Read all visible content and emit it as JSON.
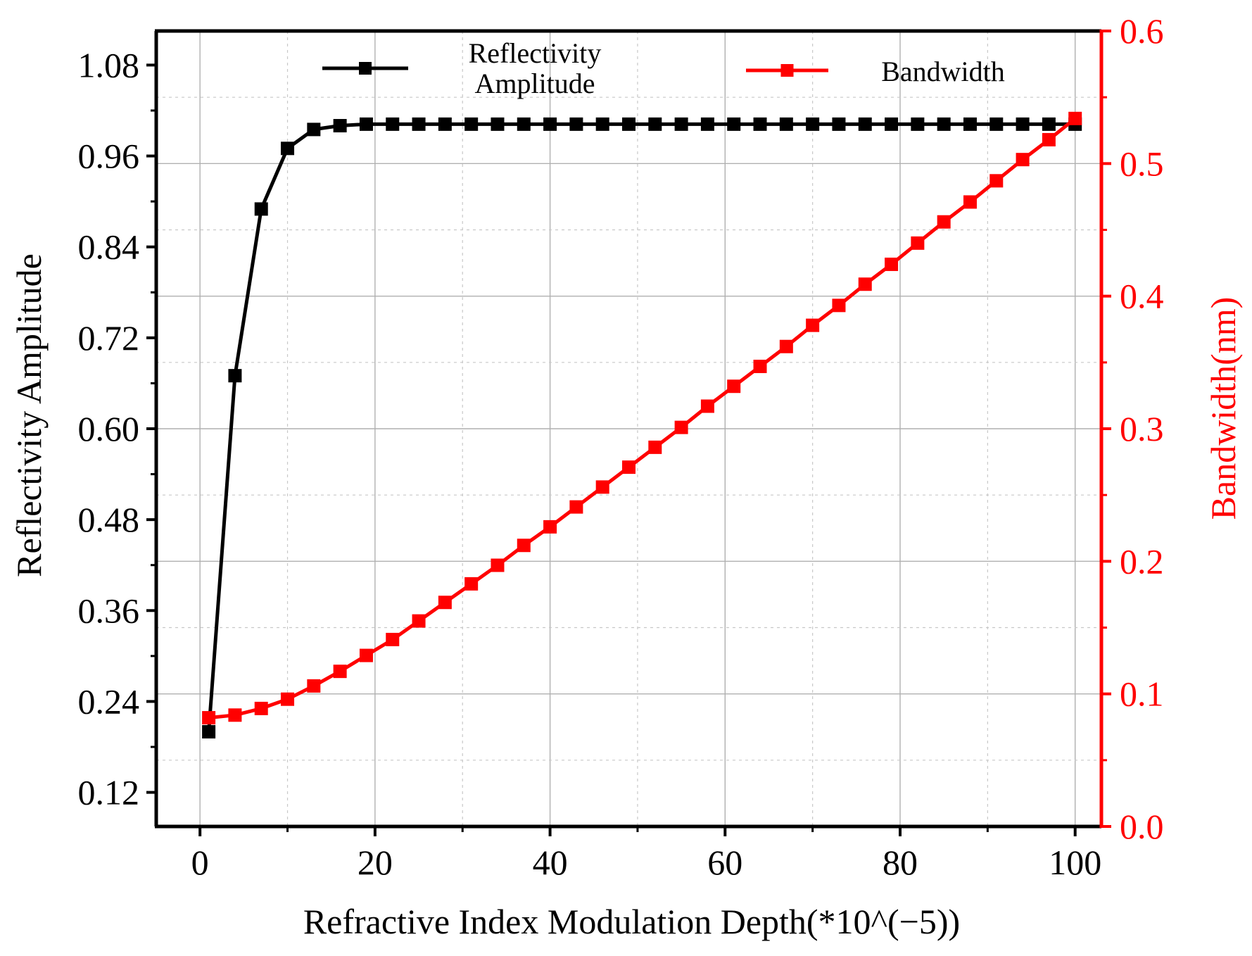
{
  "chart_data": {
    "type": "line",
    "title": "",
    "xlabel": "Refractive Index Modulation Depth(*10^(−5))",
    "ylabel": "Reflectivity Amplitude",
    "ylabel_right": "Bandwidth(nm)",
    "xlim": [
      -5,
      103
    ],
    "ylim": [
      0.075,
      1.125
    ],
    "ylim_right": [
      0.0,
      0.6
    ],
    "x_ticks": [
      0,
      20,
      40,
      60,
      80,
      100
    ],
    "y_ticks": [
      0.12,
      0.24,
      0.36,
      0.48,
      0.6,
      0.72,
      0.84,
      0.96,
      1.08
    ],
    "y_tick_labels": [
      "0.12",
      "0.24",
      "0.36",
      "0.48",
      "0.60",
      "0.72",
      "0.84",
      "0.96",
      "1.08"
    ],
    "y_right_ticks": [
      0.0,
      0.1,
      0.2,
      0.3,
      0.4,
      0.5,
      0.6
    ],
    "y_right_tick_labels": [
      "0.0",
      "0.1",
      "0.2",
      "0.3",
      "0.4",
      "0.5",
      "0.6"
    ],
    "grid": true,
    "legend_position": "top",
    "x": [
      1,
      4,
      7,
      10,
      13,
      16,
      19,
      22,
      25,
      28,
      31,
      34,
      37,
      40,
      43,
      46,
      49,
      52,
      55,
      58,
      61,
      64,
      67,
      70,
      73,
      76,
      79,
      82,
      85,
      88,
      91,
      94,
      97,
      100
    ],
    "series": [
      {
        "name": "Reflectivity\nAmplitude",
        "legend_lines": [
          "Reflectivity",
          "Amplitude"
        ],
        "axis": "left",
        "color": "#000000",
        "marker": "square",
        "values": [
          0.2,
          0.67,
          0.89,
          0.97,
          0.995,
          1.0,
          1.002,
          1.002,
          1.002,
          1.002,
          1.002,
          1.002,
          1.002,
          1.002,
          1.002,
          1.002,
          1.002,
          1.002,
          1.002,
          1.002,
          1.002,
          1.002,
          1.002,
          1.002,
          1.002,
          1.002,
          1.002,
          1.002,
          1.002,
          1.002,
          1.002,
          1.002,
          1.002,
          1.002
        ]
      },
      {
        "name": "Bandwidth",
        "legend_lines": [
          "Bandwidth"
        ],
        "axis": "right",
        "color": "#ff0000",
        "marker": "square",
        "values": [
          0.082,
          0.084,
          0.089,
          0.096,
          0.106,
          0.117,
          0.129,
          0.141,
          0.155,
          0.169,
          0.183,
          0.197,
          0.212,
          0.226,
          0.241,
          0.256,
          0.271,
          0.286,
          0.301,
          0.317,
          0.332,
          0.347,
          0.362,
          0.378,
          0.393,
          0.409,
          0.424,
          0.44,
          0.456,
          0.471,
          0.487,
          0.503,
          0.518,
          0.534
        ]
      }
    ]
  }
}
